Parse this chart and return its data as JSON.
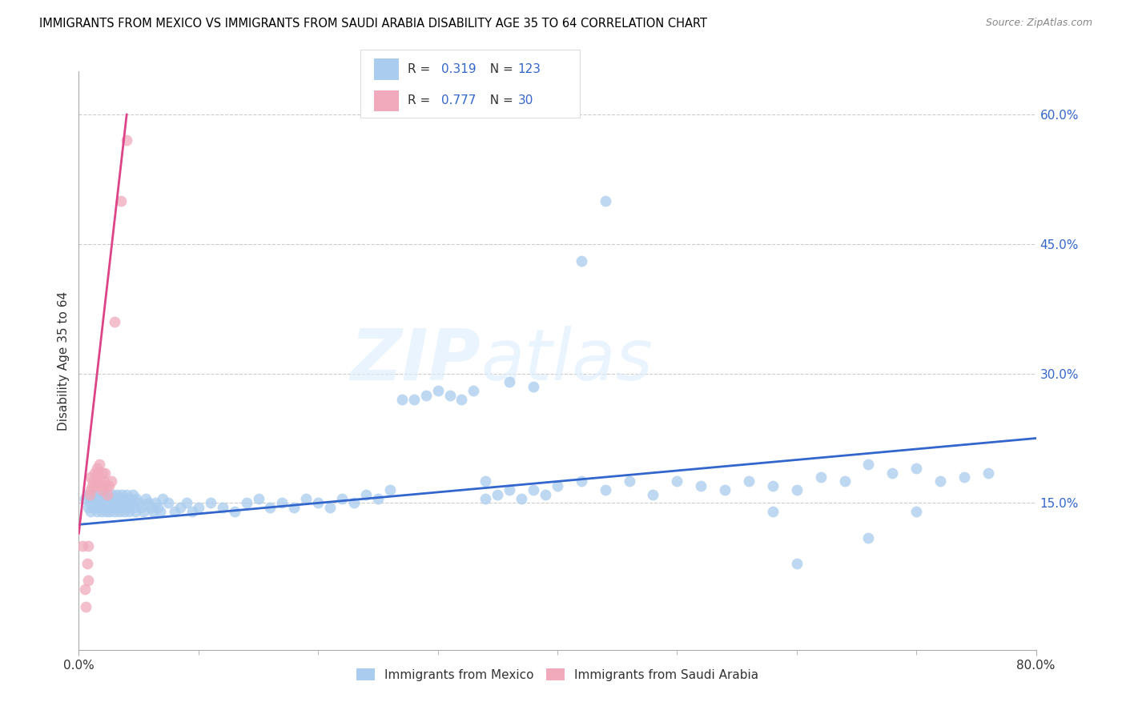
{
  "title": "IMMIGRANTS FROM MEXICO VS IMMIGRANTS FROM SAUDI ARABIA DISABILITY AGE 35 TO 64 CORRELATION CHART",
  "source": "Source: ZipAtlas.com",
  "ylabel": "Disability Age 35 to 64",
  "legend1_label": "Immigrants from Mexico",
  "legend2_label": "Immigrants from Saudi Arabia",
  "R1": "0.319",
  "N1": "123",
  "R2": "0.777",
  "N2": "30",
  "blue_color": "#aaccee",
  "blue_line_color": "#3366cc",
  "pink_color": "#f0aabb",
  "pink_line_color": "#dd4488",
  "number_color": "#3366cc",
  "xlim": [
    0.0,
    0.8
  ],
  "ylim": [
    -0.02,
    0.65
  ],
  "x_ticks": [
    0.0,
    0.8
  ],
  "x_tick_labels": [
    "0.0%",
    "80.0%"
  ],
  "x_minor_ticks": [
    0.1,
    0.2,
    0.3,
    0.4,
    0.5,
    0.6,
    0.7
  ],
  "y_ticks_right": [
    0.15,
    0.3,
    0.45,
    0.6
  ],
  "y_tick_labels_right": [
    "15.0%",
    "30.0%",
    "45.0%",
    "60.0%"
  ],
  "watermark_zip": "ZIP",
  "watermark_atlas": "atlas",
  "blue_scatter_x": [
    0.005,
    0.007,
    0.008,
    0.009,
    0.01,
    0.01,
    0.011,
    0.012,
    0.013,
    0.014,
    0.015,
    0.015,
    0.016,
    0.017,
    0.018,
    0.019,
    0.02,
    0.02,
    0.021,
    0.022,
    0.023,
    0.024,
    0.025,
    0.025,
    0.026,
    0.027,
    0.028,
    0.029,
    0.03,
    0.03,
    0.031,
    0.032,
    0.033,
    0.034,
    0.035,
    0.035,
    0.036,
    0.037,
    0.038,
    0.039,
    0.04,
    0.04,
    0.041,
    0.042,
    0.043,
    0.044,
    0.045,
    0.046,
    0.047,
    0.048,
    0.05,
    0.052,
    0.054,
    0.056,
    0.058,
    0.06,
    0.062,
    0.064,
    0.066,
    0.068,
    0.07,
    0.075,
    0.08,
    0.085,
    0.09,
    0.095,
    0.1,
    0.11,
    0.12,
    0.13,
    0.14,
    0.15,
    0.16,
    0.17,
    0.18,
    0.19,
    0.2,
    0.21,
    0.22,
    0.23,
    0.24,
    0.25,
    0.26,
    0.27,
    0.28,
    0.29,
    0.3,
    0.31,
    0.32,
    0.33,
    0.34,
    0.35,
    0.36,
    0.37,
    0.38,
    0.39,
    0.4,
    0.42,
    0.44,
    0.46,
    0.48,
    0.5,
    0.52,
    0.54,
    0.56,
    0.58,
    0.6,
    0.62,
    0.64,
    0.66,
    0.68,
    0.7,
    0.72,
    0.74,
    0.76,
    0.34,
    0.36,
    0.38,
    0.42,
    0.44,
    0.58,
    0.6,
    0.66,
    0.7
  ],
  "blue_scatter_y": [
    0.155,
    0.16,
    0.145,
    0.15,
    0.155,
    0.14,
    0.16,
    0.145,
    0.15,
    0.155,
    0.14,
    0.16,
    0.15,
    0.145,
    0.155,
    0.14,
    0.16,
    0.145,
    0.15,
    0.155,
    0.14,
    0.16,
    0.145,
    0.155,
    0.14,
    0.15,
    0.16,
    0.145,
    0.14,
    0.155,
    0.15,
    0.16,
    0.145,
    0.14,
    0.155,
    0.15,
    0.16,
    0.145,
    0.14,
    0.155,
    0.15,
    0.16,
    0.145,
    0.14,
    0.155,
    0.15,
    0.16,
    0.145,
    0.14,
    0.155,
    0.15,
    0.145,
    0.14,
    0.155,
    0.15,
    0.145,
    0.14,
    0.15,
    0.145,
    0.14,
    0.155,
    0.15,
    0.14,
    0.145,
    0.15,
    0.14,
    0.145,
    0.15,
    0.145,
    0.14,
    0.15,
    0.155,
    0.145,
    0.15,
    0.145,
    0.155,
    0.15,
    0.145,
    0.155,
    0.15,
    0.16,
    0.155,
    0.165,
    0.27,
    0.27,
    0.275,
    0.28,
    0.275,
    0.27,
    0.28,
    0.155,
    0.16,
    0.165,
    0.155,
    0.165,
    0.16,
    0.17,
    0.175,
    0.165,
    0.175,
    0.16,
    0.175,
    0.17,
    0.165,
    0.175,
    0.17,
    0.165,
    0.18,
    0.175,
    0.195,
    0.185,
    0.19,
    0.175,
    0.18,
    0.185,
    0.175,
    0.29,
    0.285,
    0.43,
    0.5,
    0.14,
    0.08,
    0.11,
    0.14
  ],
  "pink_scatter_x": [
    0.003,
    0.005,
    0.006,
    0.007,
    0.008,
    0.008,
    0.009,
    0.01,
    0.01,
    0.011,
    0.012,
    0.013,
    0.014,
    0.015,
    0.015,
    0.016,
    0.017,
    0.018,
    0.019,
    0.02,
    0.02,
    0.021,
    0.022,
    0.023,
    0.024,
    0.025,
    0.027,
    0.03,
    0.035,
    0.04
  ],
  "pink_scatter_y": [
    0.1,
    0.05,
    0.03,
    0.08,
    0.06,
    0.1,
    0.16,
    0.165,
    0.18,
    0.17,
    0.175,
    0.185,
    0.17,
    0.175,
    0.19,
    0.185,
    0.195,
    0.175,
    0.165,
    0.185,
    0.17,
    0.175,
    0.185,
    0.17,
    0.16,
    0.17,
    0.175,
    0.36,
    0.5,
    0.57
  ],
  "blue_trend_x": [
    0.0,
    0.8
  ],
  "blue_trend_y": [
    0.125,
    0.225
  ],
  "pink_trend_x": [
    0.0,
    0.04
  ],
  "pink_trend_y": [
    0.115,
    0.6
  ]
}
